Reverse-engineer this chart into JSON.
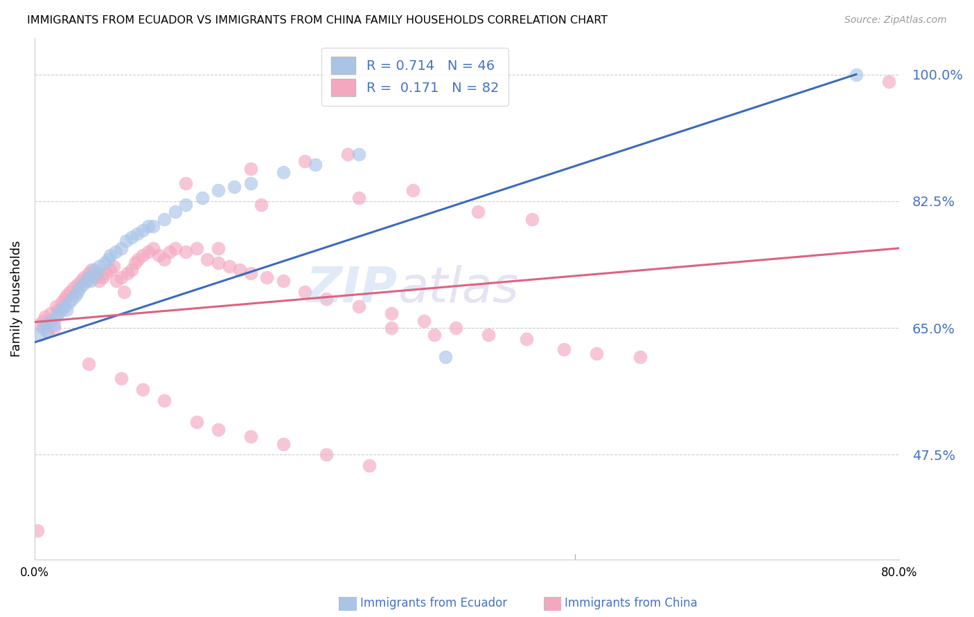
{
  "title": "IMMIGRANTS FROM ECUADOR VS IMMIGRANTS FROM CHINA FAMILY HOUSEHOLDS CORRELATION CHART",
  "source": "Source: ZipAtlas.com",
  "ylabel": "Family Households",
  "ytick_vals": [
    1.0,
    0.825,
    0.65,
    0.475
  ],
  "ytick_labels": [
    "100.0%",
    "82.5%",
    "65.0%",
    "47.5%"
  ],
  "xlim": [
    0.0,
    0.8
  ],
  "ylim": [
    0.33,
    1.05
  ],
  "legend_ecuador_R": "0.714",
  "legend_ecuador_N": "46",
  "legend_china_R": "0.171",
  "legend_china_N": "82",
  "ecuador_color": "#aac4e8",
  "china_color": "#f4a8c0",
  "ecuador_line_color": "#3a6abf",
  "china_line_color": "#e06080",
  "watermark_zip": "ZIP",
  "watermark_atlas": "atlas",
  "ecuador_x": [
    0.005,
    0.008,
    0.01,
    0.012,
    0.015,
    0.018,
    0.02,
    0.022,
    0.025,
    0.028,
    0.03,
    0.032,
    0.035,
    0.038,
    0.04,
    0.042,
    0.045,
    0.048,
    0.05,
    0.052,
    0.055,
    0.058,
    0.06,
    0.065,
    0.068,
    0.07,
    0.075,
    0.08,
    0.085,
    0.09,
    0.095,
    0.1,
    0.105,
    0.11,
    0.12,
    0.13,
    0.14,
    0.155,
    0.17,
    0.185,
    0.2,
    0.23,
    0.26,
    0.3,
    0.38,
    0.76
  ],
  "ecuador_y": [
    0.64,
    0.65,
    0.655,
    0.645,
    0.66,
    0.655,
    0.665,
    0.67,
    0.675,
    0.68,
    0.675,
    0.685,
    0.69,
    0.695,
    0.7,
    0.705,
    0.71,
    0.715,
    0.72,
    0.715,
    0.73,
    0.725,
    0.735,
    0.74,
    0.745,
    0.75,
    0.755,
    0.76,
    0.77,
    0.775,
    0.78,
    0.785,
    0.79,
    0.79,
    0.8,
    0.81,
    0.82,
    0.83,
    0.84,
    0.845,
    0.85,
    0.865,
    0.875,
    0.89,
    0.61,
    1.0
  ],
  "china_x": [
    0.005,
    0.008,
    0.01,
    0.012,
    0.015,
    0.018,
    0.02,
    0.022,
    0.025,
    0.028,
    0.03,
    0.033,
    0.036,
    0.04,
    0.043,
    0.046,
    0.05,
    0.053,
    0.056,
    0.06,
    0.063,
    0.066,
    0.07,
    0.073,
    0.076,
    0.08,
    0.083,
    0.086,
    0.09,
    0.093,
    0.096,
    0.1,
    0.105,
    0.11,
    0.115,
    0.12,
    0.125,
    0.13,
    0.14,
    0.15,
    0.16,
    0.17,
    0.18,
    0.19,
    0.2,
    0.215,
    0.23,
    0.25,
    0.27,
    0.3,
    0.33,
    0.36,
    0.39,
    0.42,
    0.455,
    0.49,
    0.52,
    0.56,
    0.33,
    0.37,
    0.05,
    0.08,
    0.1,
    0.12,
    0.15,
    0.17,
    0.2,
    0.23,
    0.27,
    0.31,
    0.14,
    0.2,
    0.25,
    0.29,
    0.17,
    0.21,
    0.3,
    0.35,
    0.41,
    0.46,
    0.79,
    0.003
  ],
  "china_y": [
    0.655,
    0.66,
    0.665,
    0.645,
    0.67,
    0.65,
    0.68,
    0.675,
    0.685,
    0.69,
    0.695,
    0.7,
    0.705,
    0.71,
    0.715,
    0.72,
    0.725,
    0.73,
    0.72,
    0.715,
    0.72,
    0.725,
    0.73,
    0.735,
    0.715,
    0.72,
    0.7,
    0.725,
    0.73,
    0.74,
    0.745,
    0.75,
    0.755,
    0.76,
    0.75,
    0.745,
    0.755,
    0.76,
    0.755,
    0.76,
    0.745,
    0.74,
    0.735,
    0.73,
    0.725,
    0.72,
    0.715,
    0.7,
    0.69,
    0.68,
    0.67,
    0.66,
    0.65,
    0.64,
    0.635,
    0.62,
    0.615,
    0.61,
    0.65,
    0.64,
    0.6,
    0.58,
    0.565,
    0.55,
    0.52,
    0.51,
    0.5,
    0.49,
    0.475,
    0.46,
    0.85,
    0.87,
    0.88,
    0.89,
    0.76,
    0.82,
    0.83,
    0.84,
    0.81,
    0.8,
    0.99,
    0.37
  ],
  "ec_line_x0": 0.0,
  "ec_line_y0": 0.63,
  "ec_line_x1": 0.76,
  "ec_line_y1": 1.0,
  "ch_line_x0": 0.0,
  "ch_line_y0": 0.658,
  "ch_line_x1": 0.8,
  "ch_line_y1": 0.76
}
